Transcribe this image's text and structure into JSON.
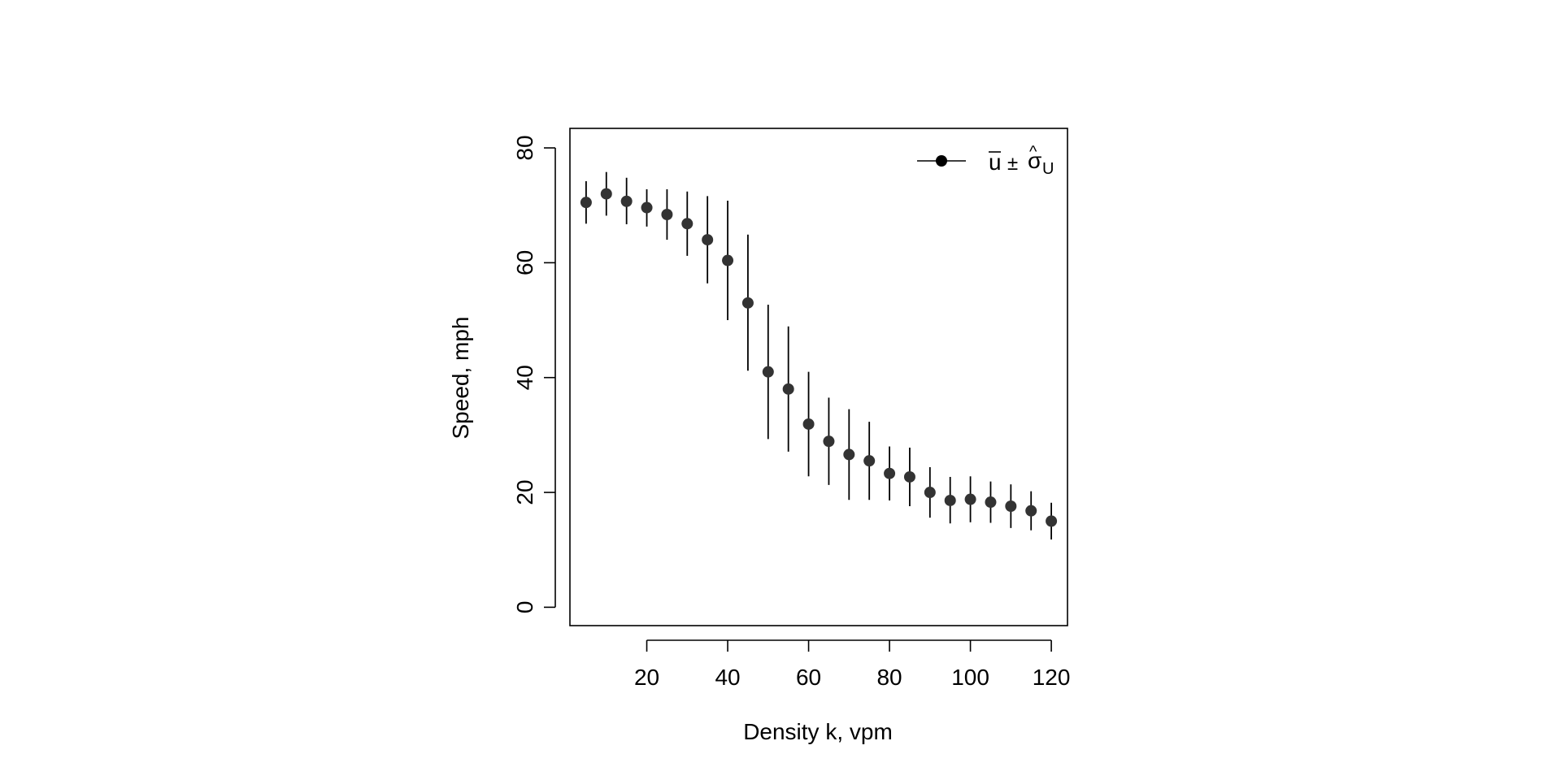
{
  "chart_data": {
    "type": "scatter",
    "title": "",
    "xlabel": "Density k, vpm",
    "ylabel": "Speed, mph",
    "xlim": [
      1,
      124
    ],
    "ylim": [
      -3.2,
      83.4
    ],
    "x_ticks": [
      20,
      40,
      60,
      80,
      100,
      120
    ],
    "y_ticks": [
      0,
      20,
      40,
      60,
      80
    ],
    "grid": false,
    "legend": {
      "position": "top-right",
      "entries": [
        {
          "label_mean": "u",
          "label_pm": "±",
          "label_sigma": "σ",
          "label_hat": "^",
          "label_sub": "U"
        }
      ]
    },
    "series": [
      {
        "marker": "circle",
        "color": "#333333",
        "errorbar_color": "#000000",
        "points": [
          {
            "x": 5,
            "y": 70.5,
            "lo": 66.8,
            "hi": 74.2
          },
          {
            "x": 10,
            "y": 72.0,
            "lo": 68.2,
            "hi": 75.8
          },
          {
            "x": 15,
            "y": 70.7,
            "lo": 66.7,
            "hi": 74.8
          },
          {
            "x": 20,
            "y": 69.6,
            "lo": 66.3,
            "hi": 72.8
          },
          {
            "x": 25,
            "y": 68.4,
            "lo": 64.0,
            "hi": 72.8
          },
          {
            "x": 30,
            "y": 66.8,
            "lo": 61.2,
            "hi": 72.4
          },
          {
            "x": 35,
            "y": 64.0,
            "lo": 56.4,
            "hi": 71.6
          },
          {
            "x": 40,
            "y": 60.4,
            "lo": 50.0,
            "hi": 70.8
          },
          {
            "x": 45,
            "y": 53.0,
            "lo": 41.2,
            "hi": 64.9
          },
          {
            "x": 50,
            "y": 41.0,
            "lo": 29.3,
            "hi": 52.7
          },
          {
            "x": 55,
            "y": 38.0,
            "lo": 27.1,
            "hi": 48.9
          },
          {
            "x": 60,
            "y": 31.9,
            "lo": 22.8,
            "hi": 41.0
          },
          {
            "x": 65,
            "y": 28.9,
            "lo": 21.3,
            "hi": 36.5
          },
          {
            "x": 70,
            "y": 26.6,
            "lo": 18.7,
            "hi": 34.5
          },
          {
            "x": 75,
            "y": 25.5,
            "lo": 18.7,
            "hi": 32.3
          },
          {
            "x": 80,
            "y": 23.3,
            "lo": 18.6,
            "hi": 28.0
          },
          {
            "x": 85,
            "y": 22.7,
            "lo": 17.6,
            "hi": 27.8
          },
          {
            "x": 90,
            "y": 20.0,
            "lo": 15.6,
            "hi": 24.4
          },
          {
            "x": 95,
            "y": 18.6,
            "lo": 14.6,
            "hi": 22.7
          },
          {
            "x": 100,
            "y": 18.8,
            "lo": 14.8,
            "hi": 22.8
          },
          {
            "x": 105,
            "y": 18.3,
            "lo": 14.7,
            "hi": 21.9
          },
          {
            "x": 110,
            "y": 17.6,
            "lo": 13.8,
            "hi": 21.4
          },
          {
            "x": 115,
            "y": 16.8,
            "lo": 13.4,
            "hi": 20.2
          },
          {
            "x": 120,
            "y": 15.0,
            "lo": 11.8,
            "hi": 18.2
          }
        ]
      }
    ]
  }
}
